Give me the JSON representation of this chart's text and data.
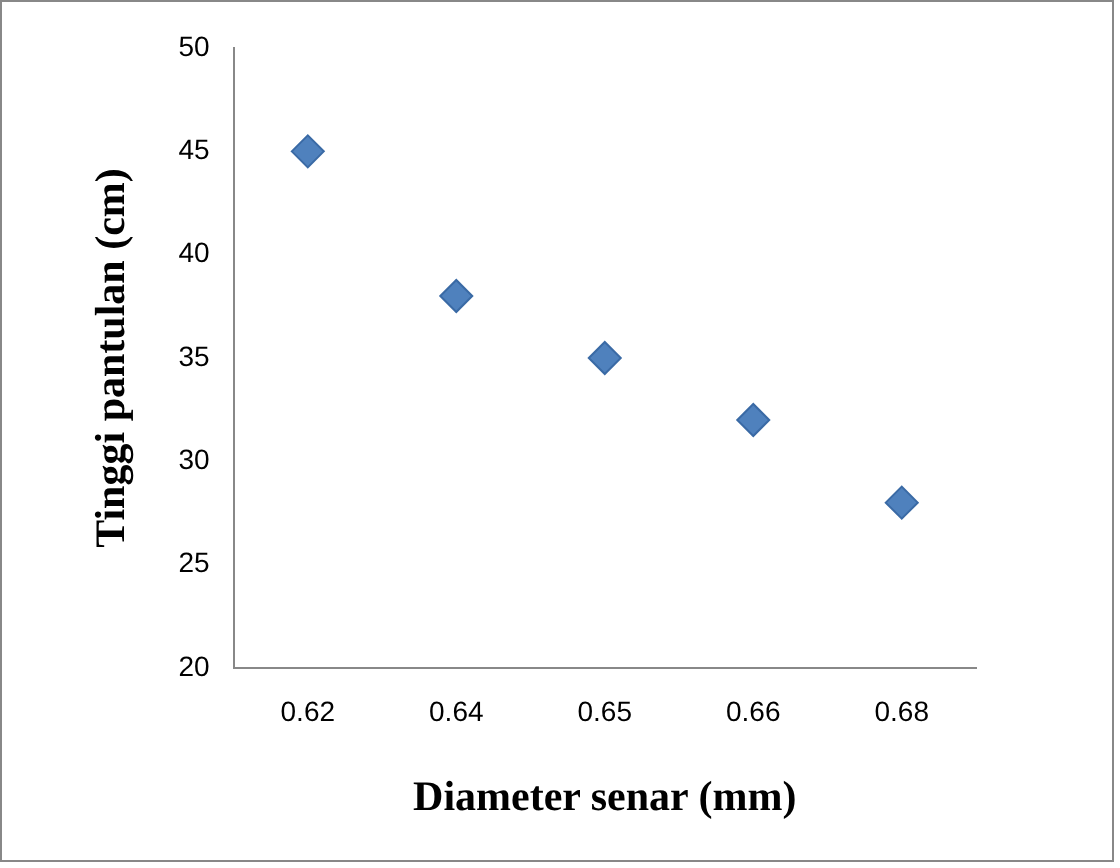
{
  "chart_data": {
    "type": "scatter",
    "xlabel": "Diameter senar (mm)",
    "ylabel": "Tinggi pantulan (cm)",
    "categories": [
      "0.62",
      "0.64",
      "0.65",
      "0.66",
      "0.68"
    ],
    "series": [
      {
        "color": "#4f81bd",
        "values": [
          45,
          38,
          35,
          32,
          28
        ]
      }
    ],
    "ylim": [
      20,
      50
    ],
    "yticks": [
      20,
      25,
      30,
      35,
      40,
      45,
      50
    ],
    "grid": false,
    "legend": false,
    "marker": "diamond"
  }
}
